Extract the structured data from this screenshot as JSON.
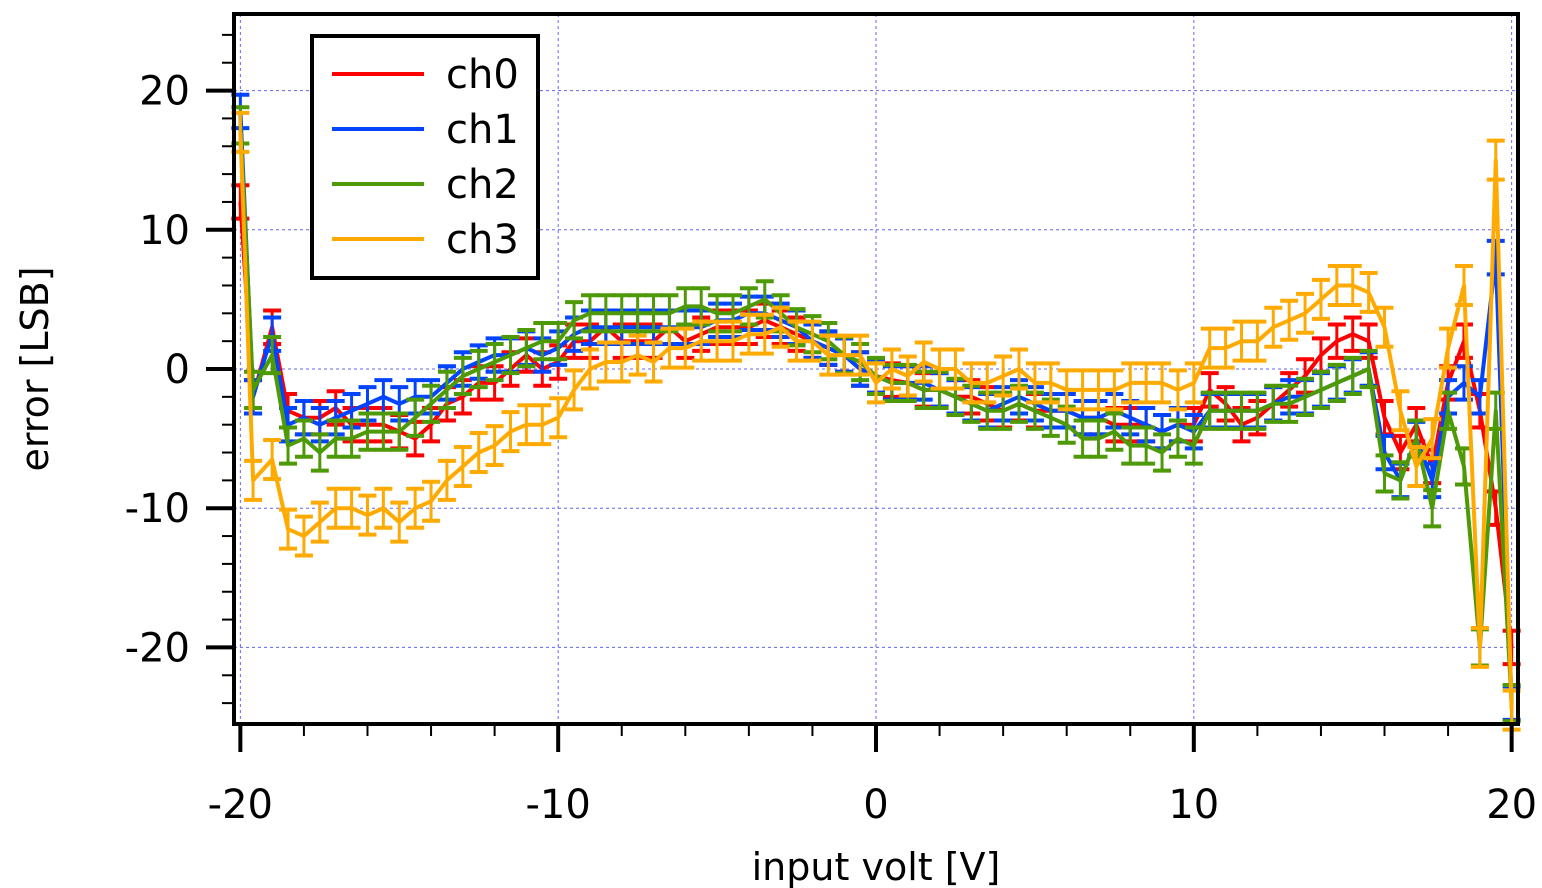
{
  "chart_data": {
    "type": "line",
    "title": "",
    "xlabel": "input volt [V]",
    "ylabel": "error [LSB]",
    "xlim": [
      -20.2,
      20.2
    ],
    "ylim": [
      -25.5,
      25.5
    ],
    "x_ticks": [
      -20,
      -10,
      0,
      10,
      20
    ],
    "x_tick_labels": [
      "-20",
      "-10",
      "0",
      "10",
      "20"
    ],
    "y_ticks": [
      -20,
      -10,
      0,
      10,
      20
    ],
    "y_tick_labels": [
      "-20",
      "-10",
      "0",
      "10",
      "20"
    ],
    "grid": true,
    "legend": "top-left",
    "error_bars": true,
    "series": [
      {
        "name": "ch0",
        "color": "#ff0000",
        "points": [
          [
            -20,
            12
          ],
          [
            -19.6,
            -2
          ],
          [
            -19,
            3
          ],
          [
            -18.5,
            -3
          ],
          [
            -18,
            -3.5
          ],
          [
            -17.5,
            -3.5
          ],
          [
            -17,
            -2.8
          ],
          [
            -16.5,
            -4
          ],
          [
            -16,
            -4
          ],
          [
            -15.5,
            -4
          ],
          [
            -15,
            -4.5
          ],
          [
            -14.5,
            -5
          ],
          [
            -14,
            -4
          ],
          [
            -13.5,
            -2.5
          ],
          [
            -13,
            -2
          ],
          [
            -12.5,
            -1
          ],
          [
            -12,
            -1
          ],
          [
            -11.5,
            0
          ],
          [
            -11,
            1
          ],
          [
            -10.5,
            0
          ],
          [
            -10,
            0.5
          ],
          [
            -9.5,
            2
          ],
          [
            -9,
            2
          ],
          [
            -8.5,
            3
          ],
          [
            -8,
            2
          ],
          [
            -7.5,
            2
          ],
          [
            -7,
            2
          ],
          [
            -6.5,
            3
          ],
          [
            -6,
            2
          ],
          [
            -5.5,
            2.5
          ],
          [
            -5,
            3
          ],
          [
            -4.5,
            3
          ],
          [
            -4,
            3
          ],
          [
            -3.5,
            3.5
          ],
          [
            -3,
            3
          ],
          [
            -2.5,
            2.5
          ],
          [
            -2,
            2
          ],
          [
            -1.5,
            1.5
          ],
          [
            -1,
            1
          ],
          [
            -0.5,
            0
          ],
          [
            0,
            -0.5
          ],
          [
            0.5,
            -0.8
          ],
          [
            1,
            -1
          ],
          [
            1.5,
            -1.5
          ],
          [
            2,
            -1.5
          ],
          [
            2.5,
            -2
          ],
          [
            3,
            -2
          ],
          [
            3.5,
            -2.5
          ],
          [
            4,
            -3
          ],
          [
            4.5,
            -2.5
          ],
          [
            5,
            -3
          ],
          [
            5.5,
            -3
          ],
          [
            6,
            -3
          ],
          [
            6.5,
            -3.5
          ],
          [
            7,
            -3.5
          ],
          [
            7.5,
            -4
          ],
          [
            8,
            -4
          ],
          [
            8.5,
            -4
          ],
          [
            9,
            -4.5
          ],
          [
            9.5,
            -4
          ],
          [
            10,
            -4
          ],
          [
            10.5,
            -1.5
          ],
          [
            11,
            -2.5
          ],
          [
            11.5,
            -4
          ],
          [
            12,
            -3.5
          ],
          [
            12.5,
            -2.5
          ],
          [
            13,
            -1.5
          ],
          [
            13.5,
            -0.5
          ],
          [
            14,
            1
          ],
          [
            14.5,
            2
          ],
          [
            15,
            2.5
          ],
          [
            15.5,
            2
          ],
          [
            16,
            -3.5
          ],
          [
            16.5,
            -6
          ],
          [
            17,
            -4
          ],
          [
            17.5,
            -7
          ],
          [
            18,
            -1
          ],
          [
            18.5,
            2
          ],
          [
            19,
            -3
          ],
          [
            19.5,
            -10
          ],
          [
            20,
            -20
          ]
        ],
        "err": 1.2
      },
      {
        "name": "ch1",
        "color": "#0044ff",
        "points": [
          [
            -20,
            18.5
          ],
          [
            -19.6,
            -2
          ],
          [
            -19,
            2.5
          ],
          [
            -18.5,
            -4
          ],
          [
            -18,
            -3.5
          ],
          [
            -17.5,
            -4
          ],
          [
            -17,
            -3.5
          ],
          [
            -16.5,
            -3
          ],
          [
            -16,
            -2.5
          ],
          [
            -15.5,
            -2
          ],
          [
            -15,
            -2.5
          ],
          [
            -14.5,
            -2
          ],
          [
            -14,
            -2
          ],
          [
            -13.5,
            -1
          ],
          [
            -13,
            0
          ],
          [
            -12.5,
            0.5
          ],
          [
            -12,
            1
          ],
          [
            -11.5,
            1
          ],
          [
            -11,
            1.5
          ],
          [
            -10.5,
            1
          ],
          [
            -10,
            1.5
          ],
          [
            -9.5,
            2.5
          ],
          [
            -9,
            3
          ],
          [
            -8.5,
            3
          ],
          [
            -8,
            3
          ],
          [
            -7.5,
            3
          ],
          [
            -7,
            3
          ],
          [
            -6.5,
            3
          ],
          [
            -6,
            3
          ],
          [
            -5.5,
            3
          ],
          [
            -5,
            3.5
          ],
          [
            -4.5,
            3.5
          ],
          [
            -4,
            4
          ],
          [
            -3.5,
            4
          ],
          [
            -3,
            3.5
          ],
          [
            -2.5,
            3
          ],
          [
            -2,
            2
          ],
          [
            -1.5,
            1.5
          ],
          [
            -1,
            1
          ],
          [
            -0.5,
            0
          ],
          [
            0,
            -0.5
          ],
          [
            0.5,
            -1
          ],
          [
            1,
            -1
          ],
          [
            1.5,
            -1
          ],
          [
            2,
            -1.5
          ],
          [
            2.5,
            -2
          ],
          [
            3,
            -2.5
          ],
          [
            3.5,
            -3
          ],
          [
            4,
            -2.5
          ],
          [
            4.5,
            -2
          ],
          [
            5,
            -2.5
          ],
          [
            5.5,
            -3
          ],
          [
            6,
            -3
          ],
          [
            6.5,
            -3.5
          ],
          [
            7,
            -3.5
          ],
          [
            7.5,
            -3
          ],
          [
            8,
            -3.5
          ],
          [
            8.5,
            -4
          ],
          [
            9,
            -4.5
          ],
          [
            9.5,
            -4
          ],
          [
            10,
            -4.5
          ],
          [
            10.5,
            -3
          ],
          [
            11,
            -3
          ],
          [
            11.5,
            -3
          ],
          [
            12,
            -3
          ],
          [
            12.5,
            -2.5
          ],
          [
            13,
            -2
          ],
          [
            13.5,
            -2
          ],
          [
            14,
            -1.5
          ],
          [
            14.5,
            -1
          ],
          [
            15,
            -0.5
          ],
          [
            15.5,
            0
          ],
          [
            16,
            -6
          ],
          [
            16.5,
            -8
          ],
          [
            17,
            -5
          ],
          [
            17.5,
            -8
          ],
          [
            18,
            -2
          ],
          [
            18.5,
            -1
          ],
          [
            19,
            -2
          ],
          [
            19.5,
            8
          ],
          [
            20,
            -24
          ]
        ],
        "err": 1.2
      },
      {
        "name": "ch2",
        "color": "#4e9a06",
        "points": [
          [
            -20,
            17.5
          ],
          [
            -19.6,
            -1.5
          ],
          [
            -19,
            1
          ],
          [
            -18.5,
            -5.5
          ],
          [
            -18,
            -5
          ],
          [
            -17.5,
            -6
          ],
          [
            -17,
            -5
          ],
          [
            -16.5,
            -5
          ],
          [
            -16,
            -4.5
          ],
          [
            -15.5,
            -4.5
          ],
          [
            -15,
            -4.5
          ],
          [
            -14.5,
            -3.5
          ],
          [
            -14,
            -2.5
          ],
          [
            -13.5,
            -1.5
          ],
          [
            -13,
            -0.5
          ],
          [
            -12.5,
            0
          ],
          [
            -12,
            0.5
          ],
          [
            -11.5,
            1
          ],
          [
            -11,
            1.5
          ],
          [
            -10.5,
            2
          ],
          [
            -10,
            2
          ],
          [
            -9.5,
            3.5
          ],
          [
            -9,
            4
          ],
          [
            -8.5,
            4
          ],
          [
            -8,
            4
          ],
          [
            -7.5,
            4
          ],
          [
            -7,
            4
          ],
          [
            -6.5,
            4
          ],
          [
            -6,
            4.5
          ],
          [
            -5.5,
            4.5
          ],
          [
            -5,
            4
          ],
          [
            -4.5,
            4
          ],
          [
            -4,
            4.5
          ],
          [
            -3.5,
            5
          ],
          [
            -3,
            4
          ],
          [
            -2.5,
            3
          ],
          [
            -2,
            2.5
          ],
          [
            -1.5,
            2
          ],
          [
            -1,
            1
          ],
          [
            -0.5,
            0.5
          ],
          [
            0,
            -0.5
          ],
          [
            0.5,
            -1
          ],
          [
            1,
            -1
          ],
          [
            1.5,
            -1.5
          ],
          [
            2,
            -1.5
          ],
          [
            2.5,
            -2
          ],
          [
            3,
            -2.5
          ],
          [
            3.5,
            -3
          ],
          [
            4,
            -3
          ],
          [
            4.5,
            -2.5
          ],
          [
            5,
            -3
          ],
          [
            5.5,
            -3.5
          ],
          [
            6,
            -4
          ],
          [
            6.5,
            -5
          ],
          [
            7,
            -5
          ],
          [
            7.5,
            -4.5
          ],
          [
            8,
            -5.5
          ],
          [
            8.5,
            -5.5
          ],
          [
            9,
            -6
          ],
          [
            9.5,
            -5
          ],
          [
            10,
            -5.5
          ],
          [
            10.5,
            -3
          ],
          [
            11,
            -3
          ],
          [
            11.5,
            -3
          ],
          [
            12,
            -3
          ],
          [
            12.5,
            -2.5
          ],
          [
            13,
            -2.5
          ],
          [
            13.5,
            -2
          ],
          [
            14,
            -1.5
          ],
          [
            14.5,
            -1
          ],
          [
            15,
            -0.5
          ],
          [
            15.5,
            0
          ],
          [
            16,
            -7.5
          ],
          [
            16.5,
            -8
          ],
          [
            17,
            -5
          ],
          [
            17.5,
            -10
          ],
          [
            18,
            -3
          ],
          [
            18.5,
            -7
          ],
          [
            19,
            -20
          ],
          [
            19.5,
            -3
          ],
          [
            20,
            -24
          ]
        ],
        "err": 1.3
      },
      {
        "name": "ch3",
        "color": "#ffaa00",
        "points": [
          [
            -20,
            17
          ],
          [
            -19.6,
            -8
          ],
          [
            -19,
            -6.5
          ],
          [
            -18.5,
            -11.5
          ],
          [
            -18,
            -12
          ],
          [
            -17.5,
            -11
          ],
          [
            -17,
            -10
          ],
          [
            -16.5,
            -10
          ],
          [
            -16,
            -10.5
          ],
          [
            -15.5,
            -10
          ],
          [
            -15,
            -11
          ],
          [
            -14.5,
            -10
          ],
          [
            -14,
            -9.5
          ],
          [
            -13.5,
            -8
          ],
          [
            -13,
            -7
          ],
          [
            -12.5,
            -6
          ],
          [
            -12,
            -5.5
          ],
          [
            -11.5,
            -4.5
          ],
          [
            -11,
            -4
          ],
          [
            -10.5,
            -4
          ],
          [
            -10,
            -3.5
          ],
          [
            -9.5,
            -1.5
          ],
          [
            -9,
            0
          ],
          [
            -8.5,
            0.5
          ],
          [
            -8,
            0.5
          ],
          [
            -7.5,
            1
          ],
          [
            -7,
            0.5
          ],
          [
            -6.5,
            1.5
          ],
          [
            -6,
            1.5
          ],
          [
            -5.5,
            2
          ],
          [
            -5,
            2
          ],
          [
            -4.5,
            2
          ],
          [
            -4,
            2.5
          ],
          [
            -3.5,
            2.5
          ],
          [
            -3,
            3
          ],
          [
            -2.5,
            2
          ],
          [
            -2,
            2
          ],
          [
            -1.5,
            1
          ],
          [
            -1,
            1
          ],
          [
            -0.5,
            1
          ],
          [
            0,
            -1
          ],
          [
            0.5,
            0
          ],
          [
            1,
            -0.5
          ],
          [
            1.5,
            0.5
          ],
          [
            2,
            0
          ],
          [
            2.5,
            0
          ],
          [
            3,
            -1
          ],
          [
            3.5,
            -1
          ],
          [
            4,
            -0.5
          ],
          [
            4.5,
            0
          ],
          [
            5,
            -1
          ],
          [
            5.5,
            -1
          ],
          [
            6,
            -1.5
          ],
          [
            6.5,
            -1.5
          ],
          [
            7,
            -1.5
          ],
          [
            7.5,
            -1.5
          ],
          [
            8,
            -1
          ],
          [
            8.5,
            -1
          ],
          [
            9,
            -1
          ],
          [
            9.5,
            -1.5
          ],
          [
            10,
            -1
          ],
          [
            10.5,
            1.5
          ],
          [
            11,
            1.5
          ],
          [
            11.5,
            2
          ],
          [
            12,
            2
          ],
          [
            12.5,
            3
          ],
          [
            13,
            3.5
          ],
          [
            13.5,
            4
          ],
          [
            14,
            5
          ],
          [
            14.5,
            6
          ],
          [
            15,
            6
          ],
          [
            15.5,
            5.5
          ],
          [
            16,
            3
          ],
          [
            16.5,
            -3
          ],
          [
            17,
            -7
          ],
          [
            17.5,
            -5
          ],
          [
            18,
            1.5
          ],
          [
            18.5,
            6
          ],
          [
            19,
            -20
          ],
          [
            19.5,
            15
          ],
          [
            20,
            -24.5
          ]
        ],
        "err": 1.4
      }
    ]
  }
}
